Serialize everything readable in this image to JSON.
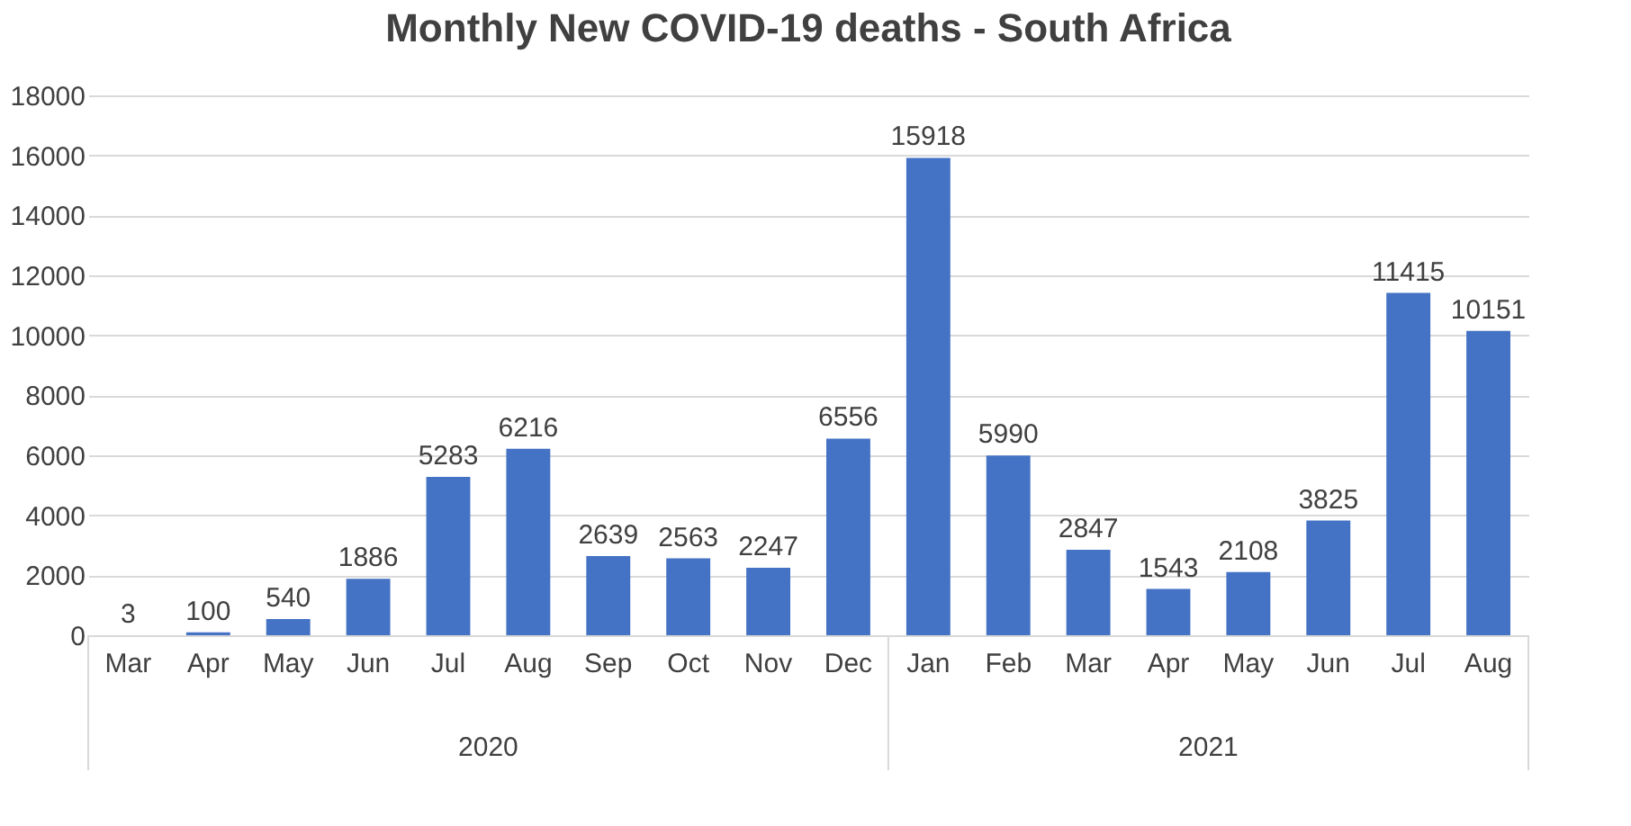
{
  "chart_data": {
    "type": "bar",
    "title": "Monthly New COVID-19 deaths - South Africa",
    "categories": [
      "Mar",
      "Apr",
      "May",
      "Jun",
      "Jul",
      "Aug",
      "Sep",
      "Oct",
      "Nov",
      "Dec",
      "Jan",
      "Feb",
      "Mar",
      "Apr",
      "May",
      "Jun",
      "Jul",
      "Aug"
    ],
    "values": [
      3,
      100,
      540,
      1886,
      5283,
      6216,
      2639,
      2563,
      2247,
      6556,
      15918,
      5990,
      2847,
      1543,
      2108,
      3825,
      11415,
      10151
    ],
    "color": "#4472c4",
    "ylim": [
      0,
      18000
    ],
    "yticks": [
      0,
      2000,
      4000,
      6000,
      8000,
      10000,
      12000,
      14000,
      16000,
      18000
    ],
    "grid": "y",
    "data_labels": true,
    "annotations": [
      "2020",
      "2021"
    ]
  }
}
